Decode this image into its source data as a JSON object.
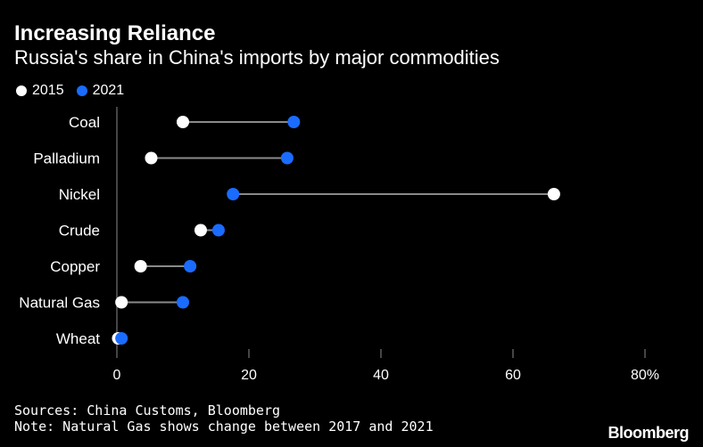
{
  "header": {
    "title": "Increasing Reliance",
    "subtitle": "Russia's share in China's imports by major commodities"
  },
  "legend": [
    {
      "label": "2015",
      "color": "#ffffff"
    },
    {
      "label": "2021",
      "color": "#1a6cff"
    }
  ],
  "chart_data": {
    "type": "dumbbell",
    "title": "Increasing Reliance",
    "subtitle": "Russia's share in China's imports by major commodities",
    "categories": [
      "Coal",
      "Palladium",
      "Nickel",
      "Crude",
      "Copper",
      "Natural Gas",
      "Wheat"
    ],
    "series": [
      {
        "name": "2015",
        "color": "#ffffff",
        "values": [
          10,
          5.2,
          66.2,
          12.7,
          3.6,
          0.7,
          0.2
        ]
      },
      {
        "name": "2021",
        "color": "#1a6cff",
        "values": [
          26.8,
          25.8,
          17.6,
          15.4,
          11.1,
          10,
          0.7
        ]
      }
    ],
    "xlim": [
      0,
      80
    ],
    "xticks": [
      0,
      20,
      40,
      60,
      80
    ],
    "xtick_labels": [
      "0",
      "20",
      "40",
      "60",
      "80%"
    ],
    "grid": false,
    "legend_position": "top-left"
  },
  "footer": {
    "sources": "Sources: China Customs, Bloomberg",
    "note": "Note: Natural Gas shows change between 2017 and 2021",
    "logo": "Bloomberg"
  }
}
